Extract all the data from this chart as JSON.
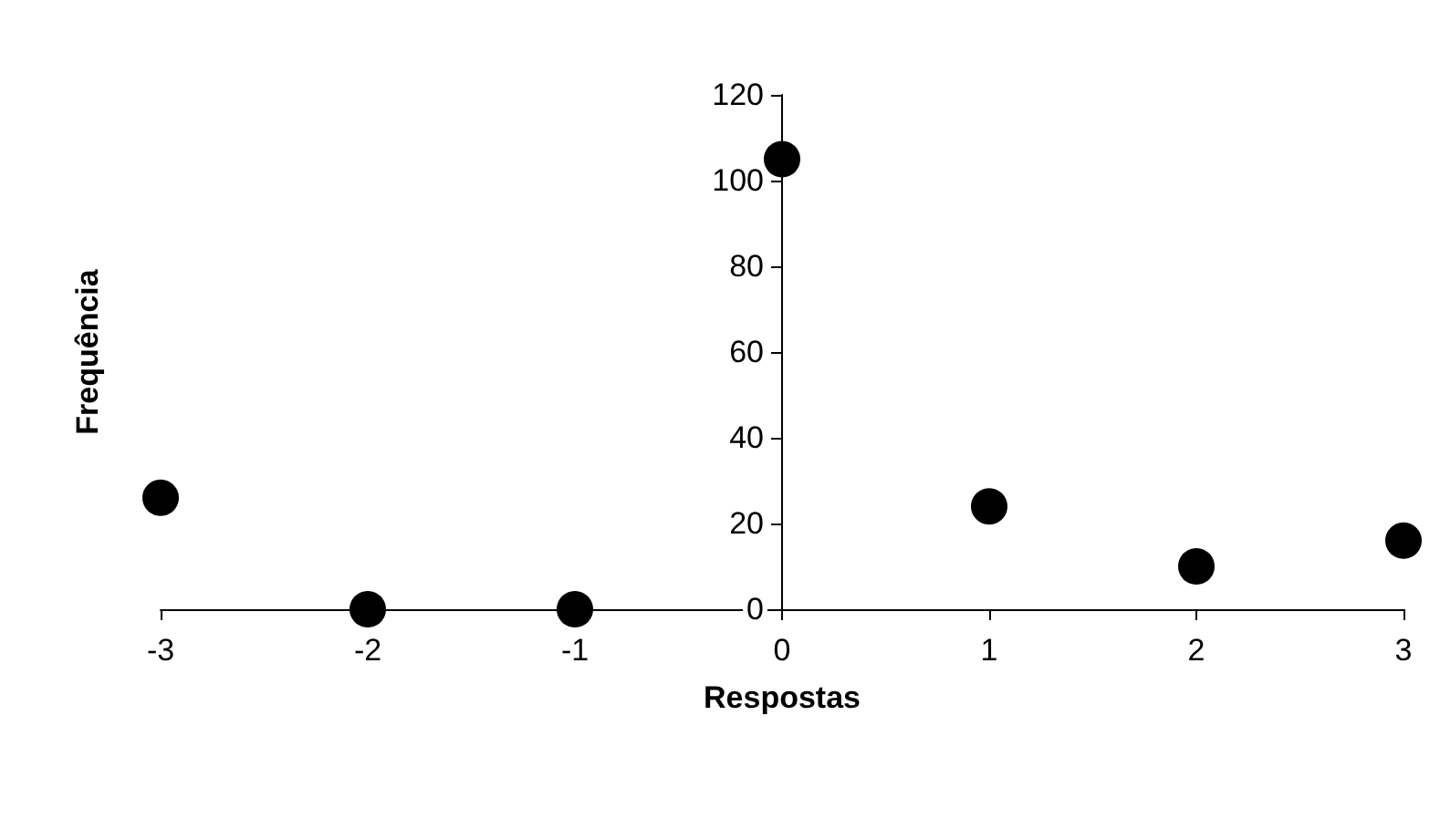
{
  "chart_data": {
    "type": "scatter",
    "xlabel": "Respostas",
    "ylabel": "Frequência",
    "x": [
      -3,
      -2,
      -1,
      0,
      1,
      2,
      3
    ],
    "series": [
      {
        "color": "#000000",
        "values": [
          26,
          0,
          0,
          105,
          24,
          10,
          16
        ]
      }
    ],
    "xlim": [
      -3,
      3
    ],
    "xticks": [
      -3,
      -2,
      -1,
      0,
      1,
      2,
      3
    ],
    "ylim": [
      0,
      120
    ],
    "yticks": [
      0,
      20,
      40,
      60,
      80,
      100,
      120
    ],
    "grid": false,
    "marker": "circle"
  }
}
